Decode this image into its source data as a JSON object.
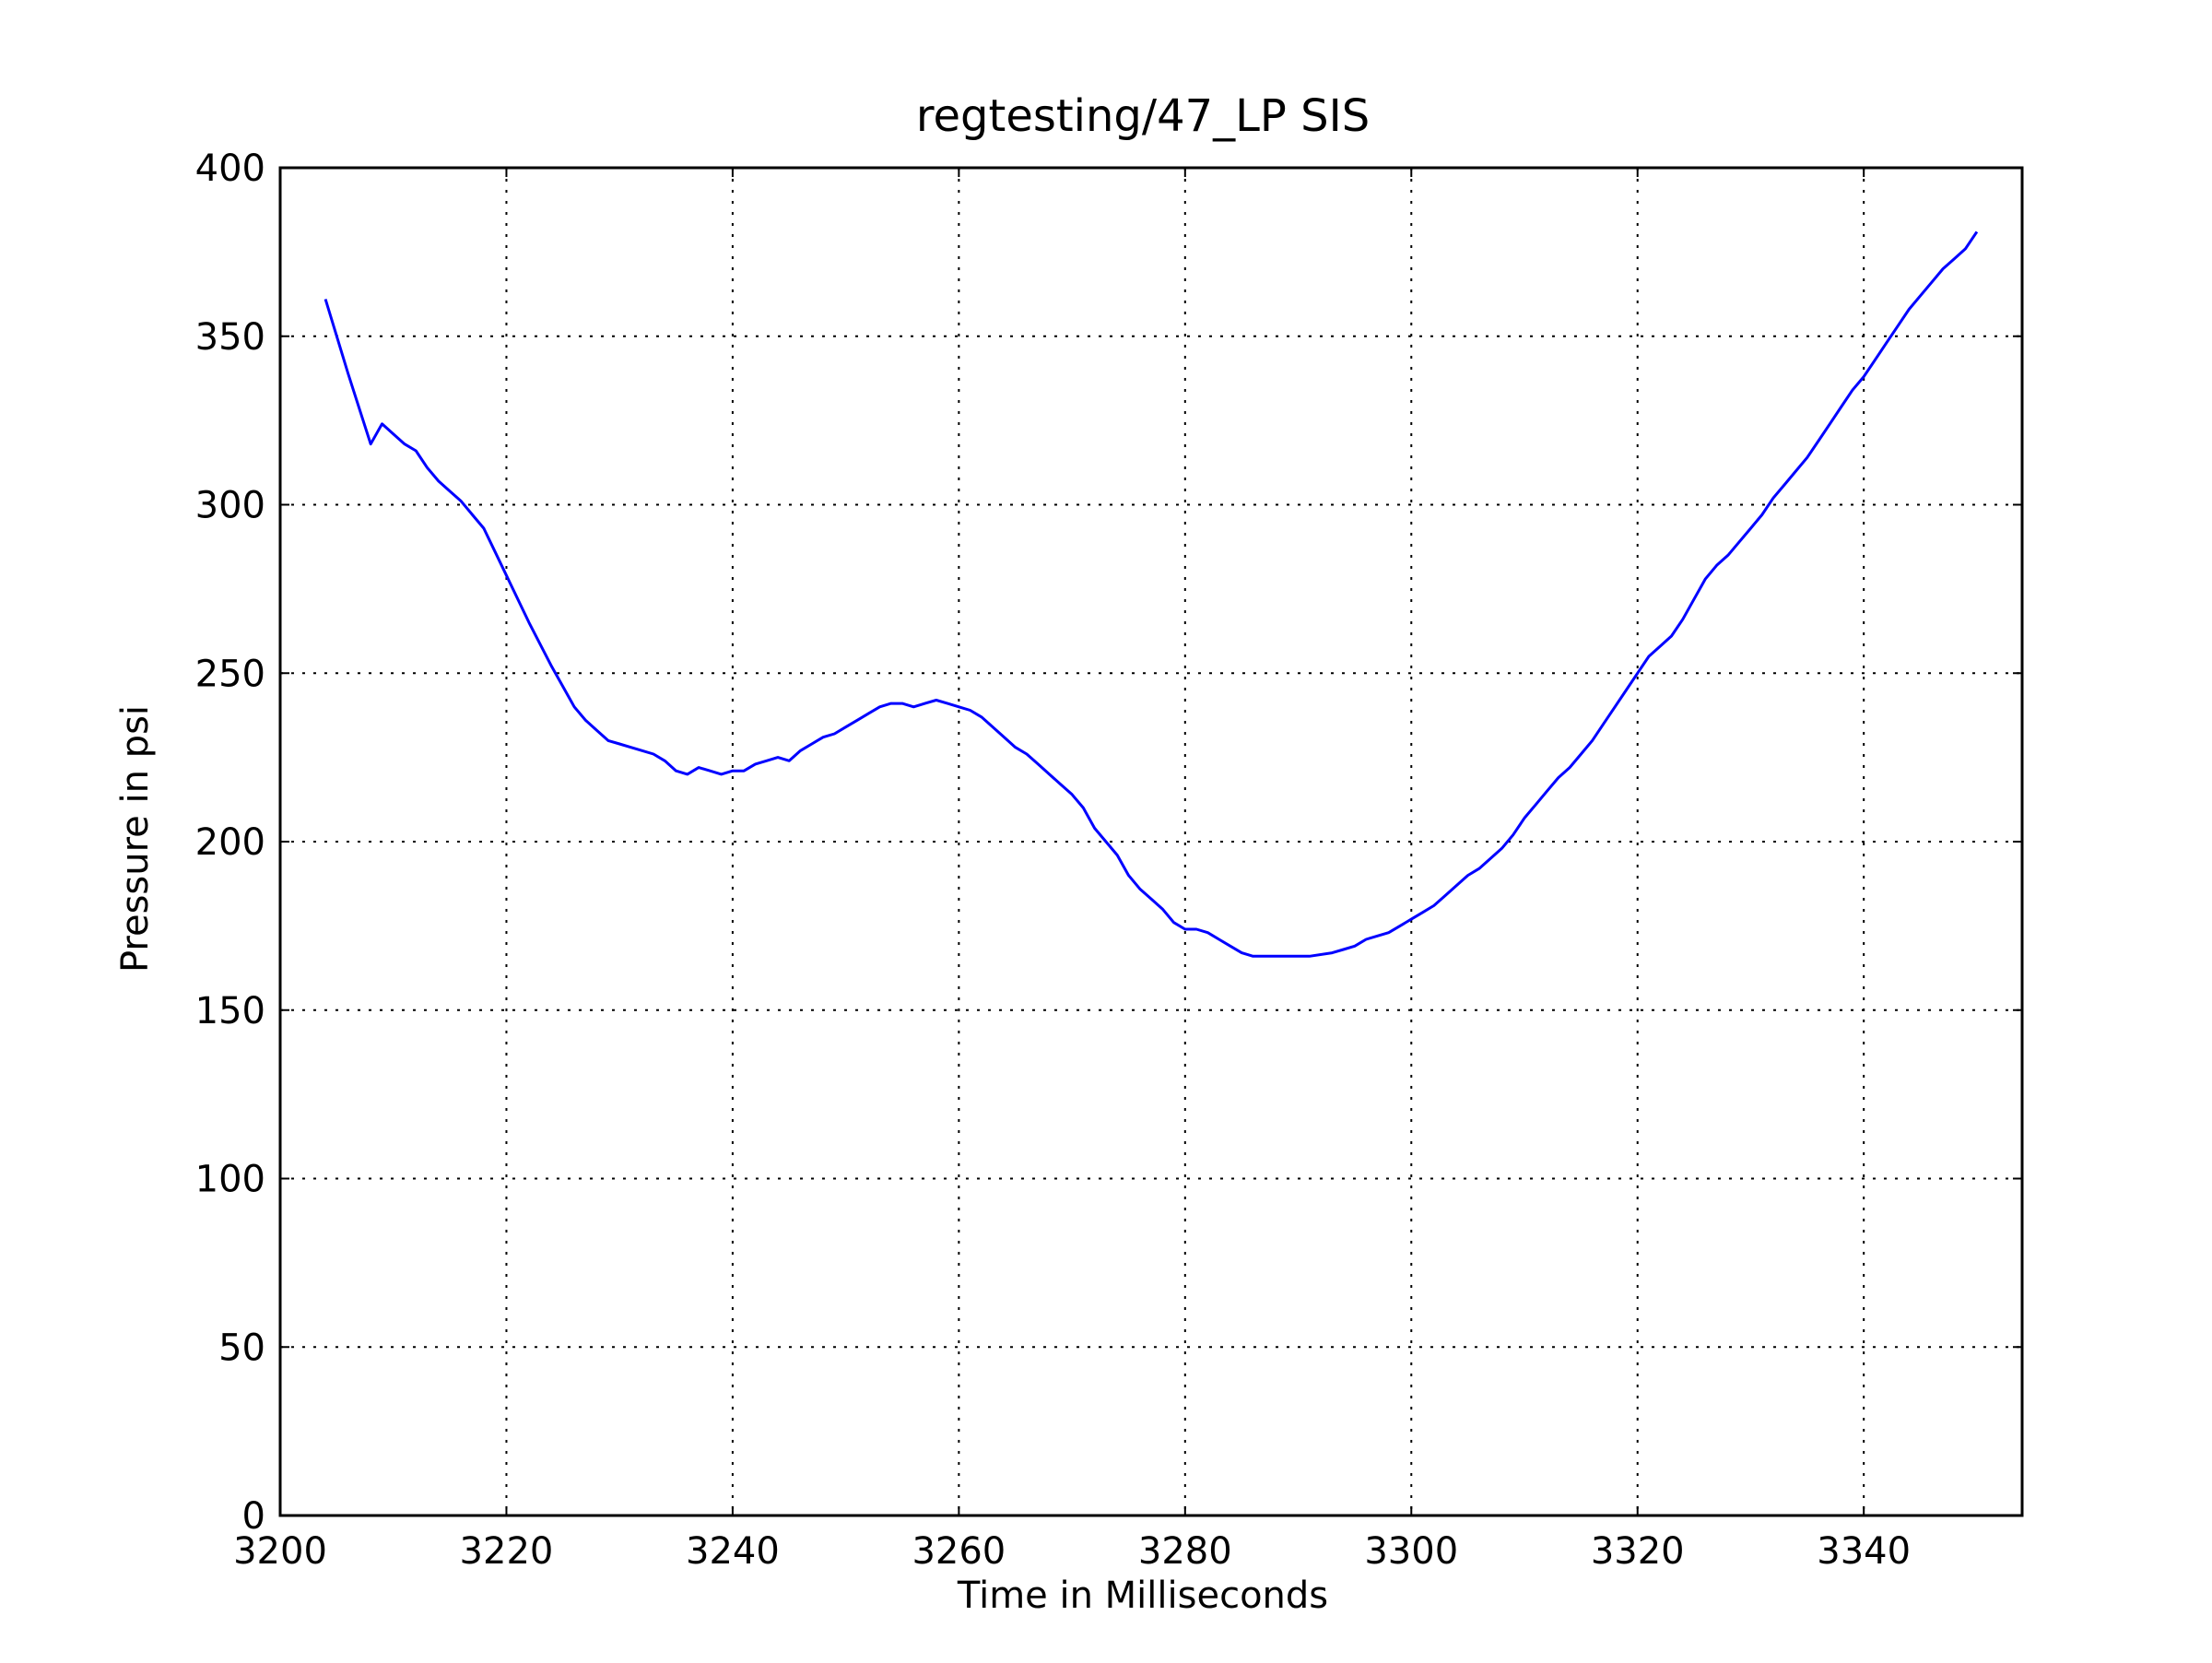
{
  "chart_data": {
    "type": "line",
    "title": "regtesting/47_LP SIS",
    "xlabel": "Time in Milliseconds",
    "ylabel": "Pressure in psi",
    "xlim": [
      3200,
      3354
    ],
    "ylim": [
      0,
      400
    ],
    "xticks": [
      3200,
      3220,
      3240,
      3260,
      3280,
      3300,
      3320,
      3340
    ],
    "yticks": [
      0,
      50,
      100,
      150,
      200,
      250,
      300,
      350,
      400
    ],
    "xtick_labels": [
      "3200",
      "3220",
      "3240",
      "3260",
      "3280",
      "3300",
      "3320",
      "3340"
    ],
    "ytick_labels": [
      "0",
      "50",
      "100",
      "150",
      "200",
      "250",
      "300",
      "350",
      "400"
    ],
    "grid": true,
    "line_color": "#0000ff",
    "series": [
      {
        "x": [
          3204,
          3206,
          3208,
          3209,
          3210,
          3211,
          3212,
          3213,
          3214,
          3215,
          3216,
          3217,
          3218,
          3219,
          3220,
          3222,
          3224,
          3226,
          3227,
          3228,
          3229,
          3230,
          3231,
          3232,
          3233,
          3234,
          3235,
          3236,
          3237,
          3238,
          3239,
          3240,
          3241,
          3242,
          3243,
          3244,
          3245,
          3246,
          3247,
          3248,
          3249,
          3250,
          3251,
          3252,
          3253,
          3254,
          3255,
          3256,
          3257,
          3258,
          3259,
          3260,
          3261,
          3262,
          3263,
          3264,
          3265,
          3266,
          3267,
          3268,
          3269,
          3270,
          3271,
          3272,
          3273,
          3274,
          3275,
          3276,
          3277,
          3278,
          3279,
          3280,
          3281,
          3282,
          3283,
          3284,
          3285,
          3286,
          3287,
          3288,
          3290,
          3291,
          3293,
          3294,
          3295,
          3296,
          3297,
          3298,
          3299,
          3300,
          3301,
          3302,
          3303,
          3304,
          3305,
          3306,
          3307,
          3308,
          3309,
          3310,
          3311,
          3312,
          3313,
          3314,
          3315,
          3316,
          3317,
          3318,
          3319,
          3320,
          3321,
          3322,
          3323,
          3324,
          3325,
          3326,
          3327,
          3328,
          3329,
          3330,
          3331,
          3332,
          3333,
          3334,
          3335,
          3336,
          3337,
          3338,
          3339,
          3340,
          3341,
          3342,
          3343,
          3344,
          3345,
          3346,
          3347,
          3348,
          3349,
          3350
        ],
        "y": [
          361,
          339,
          318,
          324,
          321,
          318,
          316,
          311,
          307,
          304,
          301,
          297,
          293,
          286,
          279,
          265,
          252,
          240,
          236,
          233,
          230,
          229,
          228,
          227,
          226,
          224,
          221,
          220,
          222,
          221,
          220,
          221,
          221,
          223,
          224,
          225,
          224,
          227,
          229,
          231,
          232,
          234,
          236,
          238,
          240,
          241,
          241,
          240,
          241,
          242,
          241,
          240,
          239,
          237,
          234,
          231,
          228,
          226,
          223,
          220,
          217,
          214,
          210,
          204,
          200,
          196,
          190,
          186,
          183,
          180,
          176,
          174,
          174,
          173,
          171,
          169,
          167,
          166,
          166,
          166,
          166,
          166,
          167,
          168,
          169,
          171,
          172,
          173,
          175,
          177,
          179,
          181,
          184,
          187,
          190,
          192,
          195,
          198,
          202,
          207,
          211,
          215,
          219,
          222,
          226,
          230,
          235,
          240,
          245,
          250,
          255,
          258,
          261,
          266,
          272,
          278,
          282,
          285,
          289,
          293,
          297,
          302,
          306,
          310,
          314,
          319,
          324,
          329,
          334,
          338,
          343,
          348,
          353,
          358,
          362,
          366,
          370,
          373,
          376,
          381
        ]
      }
    ]
  }
}
